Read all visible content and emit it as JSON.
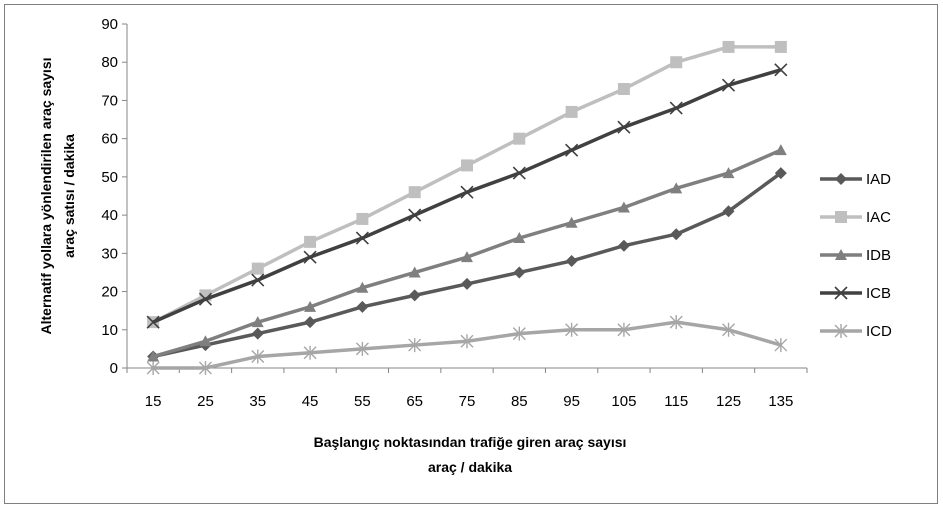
{
  "chart_data": {
    "type": "line",
    "categories": [
      15,
      25,
      35,
      45,
      55,
      65,
      75,
      85,
      95,
      105,
      115,
      125,
      135
    ],
    "xlabel_lines": [
      "Başlangıç  noktasından trafiğe giren araç sayısı",
      "araç / dakika"
    ],
    "ylabel_lines": [
      "Alternatif yollara  yönlendirilen  araç sayısı",
      "araç satısı  / dakika"
    ],
    "ylim": [
      0,
      90
    ],
    "yticks": [
      0,
      10,
      20,
      30,
      40,
      50,
      60,
      70,
      80,
      90
    ],
    "legend_position": "right",
    "grid": false,
    "series": [
      {
        "name": "IAD",
        "marker": "diamond",
        "color": "#595959",
        "values": [
          3,
          6,
          9,
          12,
          16,
          19,
          22,
          25,
          28,
          32,
          35,
          41,
          51
        ]
      },
      {
        "name": "IAC",
        "marker": "square",
        "color": "#bfbfbf",
        "values": [
          12,
          19,
          26,
          33,
          39,
          46,
          53,
          60,
          67,
          73,
          80,
          84,
          84
        ]
      },
      {
        "name": "IDB",
        "marker": "triangle",
        "color": "#7f7f7f",
        "values": [
          3,
          7,
          12,
          16,
          21,
          25,
          29,
          34,
          38,
          42,
          47,
          51,
          57
        ]
      },
      {
        "name": "ICB",
        "marker": "x",
        "color": "#404040",
        "values": [
          12,
          18,
          23,
          29,
          34,
          40,
          46,
          51,
          57,
          63,
          68,
          74,
          78
        ]
      },
      {
        "name": "ICD",
        "marker": "star",
        "color": "#a6a6a6",
        "values": [
          0,
          0,
          3,
          4,
          5,
          6,
          7,
          9,
          10,
          10,
          12,
          10,
          6
        ]
      }
    ]
  }
}
